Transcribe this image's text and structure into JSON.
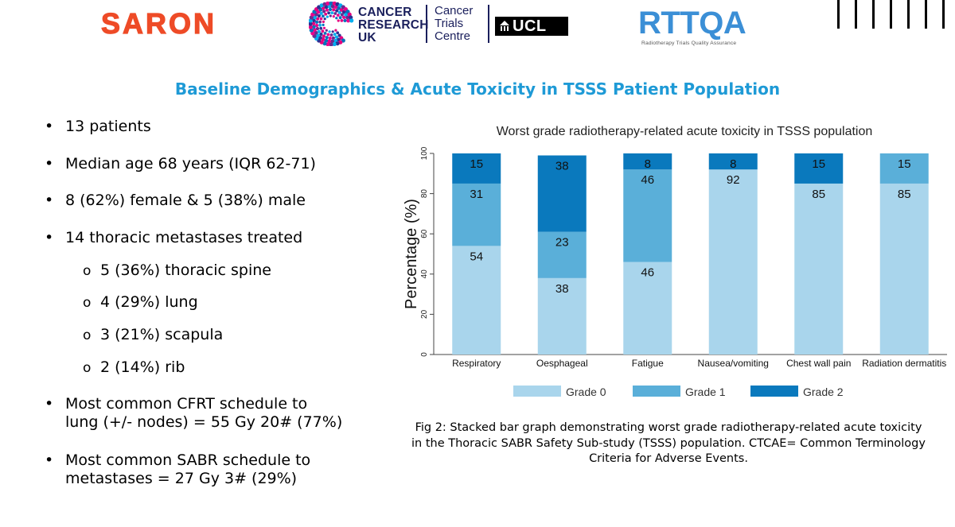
{
  "logos": {
    "saron": "SARON",
    "cruk": [
      "CANCER",
      "RESEARCH",
      "UK"
    ],
    "ctc": [
      "Cancer",
      "Trials",
      "Centre"
    ],
    "ucl": "UCL",
    "rttqa": "RTTQA",
    "rttqa_sub": "Radiotherapy Trials Quality Assurance"
  },
  "title": "Baseline Demographics & Acute Toxicity in TSSS Patient Population",
  "bullets": {
    "b1": "13 patients",
    "b2": "Median age 68 years (IQR 62-71)",
    "b3": "8 (62%) female & 5 (38%) male",
    "b4": "14 thoracic metastases treated",
    "s1": "5 (36%) thoracic spine",
    "s2": "4 (29%) lung",
    "s3": "3 (21%) scapula",
    "s4": "2 (14%) rib",
    "b5a": "Most common CFRT schedule to",
    "b5b": "lung  (+/- nodes) = 55 Gy 20# (77%)",
    "b6a": "Most common SABR schedule to",
    "b6b": "metastases = 27 Gy 3# (29%)"
  },
  "bullet_symbol": "•",
  "sub_symbol": "o",
  "chart_data": {
    "type": "bar",
    "stacked": true,
    "title": "Worst grade radiotherapy-related acute toxicity in TSSS population",
    "xlabel": "",
    "ylabel": "Percentage (%)",
    "ylim": [
      0,
      100
    ],
    "yticks": [
      "0",
      "20",
      "40",
      "60",
      "80",
      "100"
    ],
    "categories": [
      "Respiratory",
      "Oesphageal",
      "Fatigue",
      "Nausea/vomiting",
      "Chest wall pain",
      "Radiation dermatitis"
    ],
    "series": [
      {
        "name": "Grade 0",
        "color": "#a9d5ec",
        "values": [
          54,
          38,
          46,
          92,
          85,
          85
        ]
      },
      {
        "name": "Grade 1",
        "color": "#5aafd9",
        "values": [
          31,
          23,
          46,
          0,
          0,
          15
        ]
      },
      {
        "name": "Grade 2",
        "color": "#0a79bd",
        "values": [
          15,
          38,
          8,
          8,
          15,
          0
        ]
      }
    ],
    "legend_position": "bottom",
    "grid": false
  },
  "caption": {
    "line1": "Fig 2: Stacked bar graph demonstrating worst grade radiotherapy-related acute toxicity",
    "line2": "in the Thoracic SABR Safety Sub-study (TSSS) population. CTCAE= Common Terminology",
    "line3": "Criteria for Adverse Events."
  }
}
